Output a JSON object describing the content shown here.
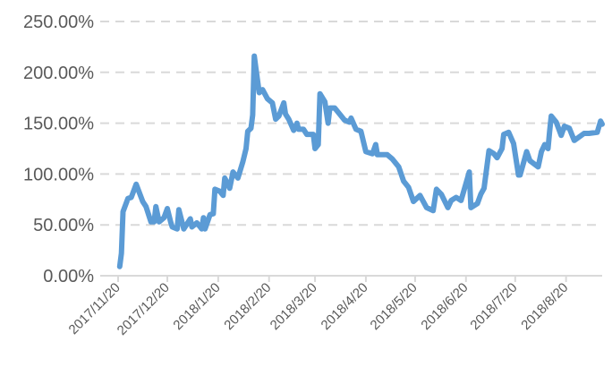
{
  "chart_data": {
    "type": "line",
    "title": "",
    "xlabel": "",
    "ylabel": "",
    "ylim": [
      0,
      250
    ],
    "y_ticks": [
      "0.00%",
      "50.00%",
      "100.00%",
      "150.00%",
      "200.00%",
      "250.00%"
    ],
    "y_tick_values": [
      0,
      50,
      100,
      150,
      200,
      250
    ],
    "x_ticks": [
      "2017/11/20",
      "2017/12/20",
      "2018/1/20",
      "2018/2/20",
      "2018/3/20",
      "2018/4/20",
      "2018/5/20",
      "2018/6/20",
      "2018/7/20",
      "2018/8/20"
    ],
    "xlim": [
      "2017-11-20",
      "2018-09-11"
    ],
    "grid": "horizontal dashed",
    "legend": "none",
    "line_color": "#5b9bd5",
    "series": [
      {
        "x": [
          "2017-11-21",
          "2017-11-22",
          "2017-11-23",
          "2017-11-26",
          "2017-11-28",
          "2017-12-01",
          "2017-12-05",
          "2017-12-07",
          "2017-12-10",
          "2017-12-12",
          "2017-12-13",
          "2017-12-15",
          "2017-12-18",
          "2017-12-20",
          "2017-12-22",
          "2017-12-23",
          "2017-12-26",
          "2017-12-27",
          "2017-12-30",
          "2018-01-03",
          "2018-01-04",
          "2018-01-07",
          "2018-01-10",
          "2018-01-11",
          "2018-01-12",
          "2018-01-15",
          "2018-01-17",
          "2018-01-18",
          "2018-01-21",
          "2018-01-23",
          "2018-01-24",
          "2018-01-27",
          "2018-01-29",
          "2018-02-01",
          "2018-02-04",
          "2018-02-06",
          "2018-02-07",
          "2018-02-09",
          "2018-02-10",
          "2018-02-11",
          "2018-02-12",
          "2018-02-14",
          "2018-02-16",
          "2018-02-19",
          "2018-02-22",
          "2018-02-24",
          "2018-02-26",
          "2018-03-01",
          "2018-03-02",
          "2018-03-04",
          "2018-03-07",
          "2018-03-09",
          "2018-03-10",
          "2018-03-13",
          "2018-03-15",
          "2018-03-19",
          "2018-03-20",
          "2018-03-22",
          "2018-03-23",
          "2018-03-26",
          "2018-03-28",
          "2018-03-29",
          "2018-04-01",
          "2018-04-07",
          "2018-04-10",
          "2018-04-11",
          "2018-04-14",
          "2018-04-17",
          "2018-04-20",
          "2018-04-24",
          "2018-04-26",
          "2018-04-27",
          "2018-05-03",
          "2018-05-06",
          "2018-05-10",
          "2018-05-13",
          "2018-05-16",
          "2018-05-19",
          "2018-05-23",
          "2018-05-27",
          "2018-05-31",
          "2018-06-02",
          "2018-06-05",
          "2018-06-09",
          "2018-06-11",
          "2018-06-14",
          "2018-06-17",
          "2018-06-22",
          "2018-06-23",
          "2018-06-27",
          "2018-06-29",
          "2018-07-01",
          "2018-07-04",
          "2018-07-07",
          "2018-07-09",
          "2018-07-12",
          "2018-07-13",
          "2018-07-16",
          "2018-07-19",
          "2018-07-22",
          "2018-07-23",
          "2018-07-27",
          "2018-07-29",
          "2018-08-03",
          "2018-08-05",
          "2018-08-07",
          "2018-08-09",
          "2018-08-10",
          "2018-08-11",
          "2018-08-14",
          "2018-08-17",
          "2018-08-19",
          "2018-08-22",
          "2018-08-25",
          "2018-08-31",
          "2018-09-03",
          "2018-09-08",
          "2018-09-10",
          "2018-09-11"
        ],
        "values": [
          9,
          22,
          63,
          76,
          77,
          90,
          73,
          68,
          53,
          53,
          68,
          53,
          57,
          66,
          53,
          48,
          46,
          65,
          46,
          56,
          48,
          52,
          46,
          57,
          46,
          60,
          61,
          85,
          83,
          79,
          96,
          86,
          102,
          96,
          112,
          125,
          142,
          145,
          158,
          216,
          204,
          180,
          183,
          174,
          170,
          154,
          157,
          170,
          159,
          154,
          143,
          150,
          144,
          144,
          139,
          139,
          125,
          129,
          179,
          171,
          150,
          165,
          165,
          153,
          151,
          155,
          144,
          142,
          122,
          120,
          129,
          119,
          119,
          115,
          107,
          93,
          87,
          73,
          79,
          67,
          64,
          85,
          80,
          67,
          74,
          77,
          74,
          102,
          67,
          71,
          80,
          86,
          123,
          120,
          116,
          125,
          139,
          141,
          130,
          99,
          99,
          122,
          113,
          107,
          122,
          129,
          125,
          142,
          157,
          151,
          138,
          147,
          145,
          133,
          140,
          140,
          141,
          152,
          149
        ]
      }
    ]
  }
}
